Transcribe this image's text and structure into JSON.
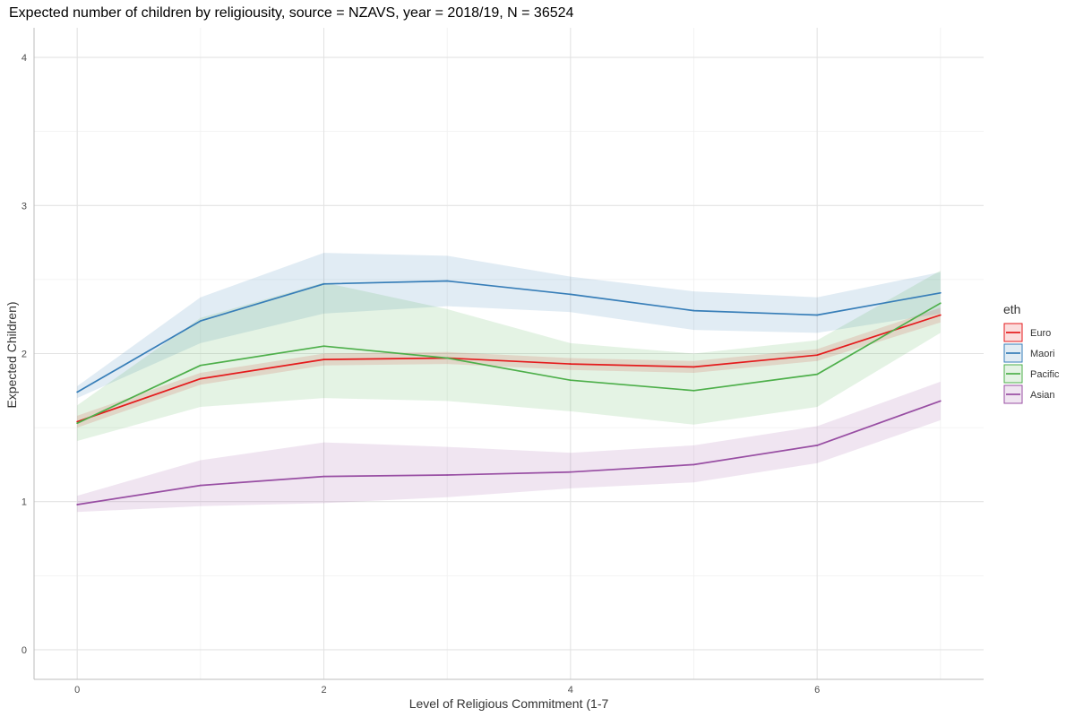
{
  "chart_data": {
    "type": "line",
    "title": "Expected number of children by religiousity, source = NZAVS, year = 2018/19, N = 36524",
    "xlabel": "Level of Religious Commitment (1-7",
    "ylabel": "Expected Children)",
    "xlim": [
      -0.35,
      7.35
    ],
    "ylim": [
      -0.2,
      4.2
    ],
    "x_ticks": [
      0,
      2,
      4,
      6
    ],
    "y_ticks": [
      0,
      1,
      2,
      3,
      4
    ],
    "x_minor": [
      1,
      3,
      5,
      7
    ],
    "y_minor": [
      0.5,
      1.5,
      2.5,
      3.5
    ],
    "grid": true,
    "legend": {
      "title": "eth",
      "position": "right"
    },
    "x": [
      0,
      1,
      2,
      3,
      4,
      5,
      6,
      7
    ],
    "series": [
      {
        "name": "Euro",
        "color": "#e41a1c",
        "values": [
          1.54,
          1.83,
          1.96,
          1.97,
          1.93,
          1.91,
          1.99,
          2.26
        ],
        "lower": [
          1.5,
          1.79,
          1.92,
          1.93,
          1.89,
          1.87,
          1.95,
          2.21
        ],
        "upper": [
          1.58,
          1.87,
          2.0,
          2.01,
          1.97,
          1.95,
          2.03,
          2.31
        ]
      },
      {
        "name": "Maori",
        "color": "#377eb8",
        "values": [
          1.74,
          2.22,
          2.47,
          2.49,
          2.4,
          2.29,
          2.26,
          2.41
        ],
        "lower": [
          1.7,
          2.07,
          2.27,
          2.32,
          2.28,
          2.16,
          2.14,
          2.27
        ],
        "upper": [
          1.78,
          2.38,
          2.68,
          2.66,
          2.52,
          2.42,
          2.38,
          2.55
        ]
      },
      {
        "name": "Pacific",
        "color": "#4daf4a",
        "values": [
          1.53,
          1.92,
          2.05,
          1.97,
          1.82,
          1.75,
          1.86,
          2.34
        ],
        "lower": [
          1.41,
          1.64,
          1.7,
          1.68,
          1.61,
          1.52,
          1.64,
          2.14
        ],
        "upper": [
          1.65,
          2.24,
          2.48,
          2.3,
          2.07,
          2.0,
          2.09,
          2.56
        ]
      },
      {
        "name": "Asian",
        "color": "#984ea3",
        "values": [
          0.98,
          1.11,
          1.17,
          1.18,
          1.2,
          1.25,
          1.38,
          1.68
        ],
        "lower": [
          0.93,
          0.97,
          0.99,
          1.03,
          1.09,
          1.13,
          1.26,
          1.55
        ],
        "upper": [
          1.04,
          1.28,
          1.4,
          1.37,
          1.33,
          1.38,
          1.51,
          1.81
        ]
      }
    ]
  }
}
